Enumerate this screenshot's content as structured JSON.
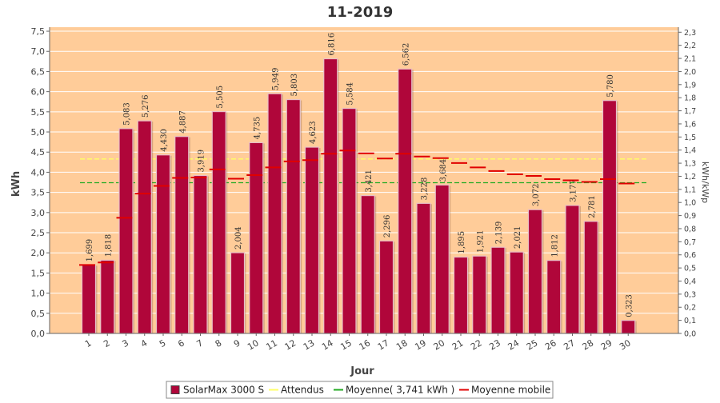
{
  "chart_data": {
    "type": "bar",
    "title": "11-2019",
    "xlabel": "Jour",
    "ylabel": "kWh",
    "ylabel_right": "kWh/kWp",
    "ylim": [
      0,
      7.6
    ],
    "y_ticks": [
      "0,0",
      "0,5",
      "1,0",
      "1,5",
      "2,0",
      "2,5",
      "3,0",
      "3,5",
      "4,0",
      "4,5",
      "5,0",
      "5,5",
      "6,0",
      "6,5",
      "7,0",
      "7,5"
    ],
    "y_right_ticks": [
      "0,0",
      "0,1",
      "0,2",
      "0,3",
      "0,4",
      "0,5",
      "0,6",
      "0,7",
      "0,8",
      "0,9",
      "1,0",
      "1,1",
      "1,2",
      "1,3",
      "1,4",
      "1,5",
      "1,6",
      "1,7",
      "1,8",
      "1,9",
      "2,0",
      "2,1",
      "2,2",
      "2,3"
    ],
    "categories": [
      "1",
      "2",
      "3",
      "4",
      "5",
      "6",
      "7",
      "8",
      "9",
      "10",
      "11",
      "12",
      "13",
      "14",
      "15",
      "16",
      "17",
      "18",
      "19",
      "20",
      "21",
      "22",
      "23",
      "24",
      "25",
      "26",
      "27",
      "28",
      "29",
      "30"
    ],
    "series": [
      {
        "name": "SolarMax 3000 S",
        "values": [
          1.699,
          1.818,
          5.083,
          5.276,
          4.43,
          4.887,
          3.919,
          5.505,
          2.004,
          4.735,
          5.949,
          5.803,
          4.623,
          6.816,
          5.584,
          3.421,
          2.296,
          6.562,
          3.228,
          3.684,
          1.895,
          1.921,
          2.139,
          2.021,
          3.072,
          1.812,
          3.177,
          2.781,
          5.78,
          0.323
        ],
        "labels": [
          "1,699",
          "1,818",
          "5,083",
          "5,276",
          "4,430",
          "4,887",
          "3,919",
          "5,505",
          "2,004",
          "4,735",
          "5,949",
          "5,803",
          "4,623",
          "6,816",
          "5,584",
          "3,421",
          "2,296",
          "6,562",
          "3,228",
          "3,684",
          "1,895",
          "1,921",
          "2,139",
          "2,021",
          "3,072",
          "1,812",
          "3,177",
          "2,781",
          "5,780",
          "0,323"
        ],
        "color": "#b0063a"
      },
      {
        "name": "Moyenne mobile",
        "values": [
          1.7,
          1.76,
          2.87,
          3.47,
          3.66,
          3.86,
          3.87,
          4.07,
          3.84,
          3.93,
          4.12,
          4.27,
          4.3,
          4.46,
          4.54,
          4.47,
          4.34,
          4.46,
          4.39,
          4.35,
          4.23,
          4.12,
          4.03,
          3.95,
          3.91,
          3.83,
          3.8,
          3.76,
          3.83,
          3.72
        ],
        "color": "#e00000"
      }
    ],
    "reference_lines": [
      {
        "name": "Attendus",
        "value": 4.33,
        "color": "#ffff66"
      },
      {
        "name": "Moyenne( 3,741 kWh )",
        "value": 3.741,
        "color": "#22aa22"
      }
    ],
    "legend": {
      "position": "bottom",
      "items": [
        {
          "label": "SolarMax 3000 S",
          "color": "#b0063a"
        },
        {
          "label": "Attendus",
          "color": "#ffff66"
        },
        {
          "label": "Moyenne( 3,741 kWh )",
          "color": "#22aa22"
        },
        {
          "label": "Moyenne mobile",
          "color": "#e00000"
        }
      ]
    },
    "plot_background": "#ffcc99",
    "grid": true
  }
}
